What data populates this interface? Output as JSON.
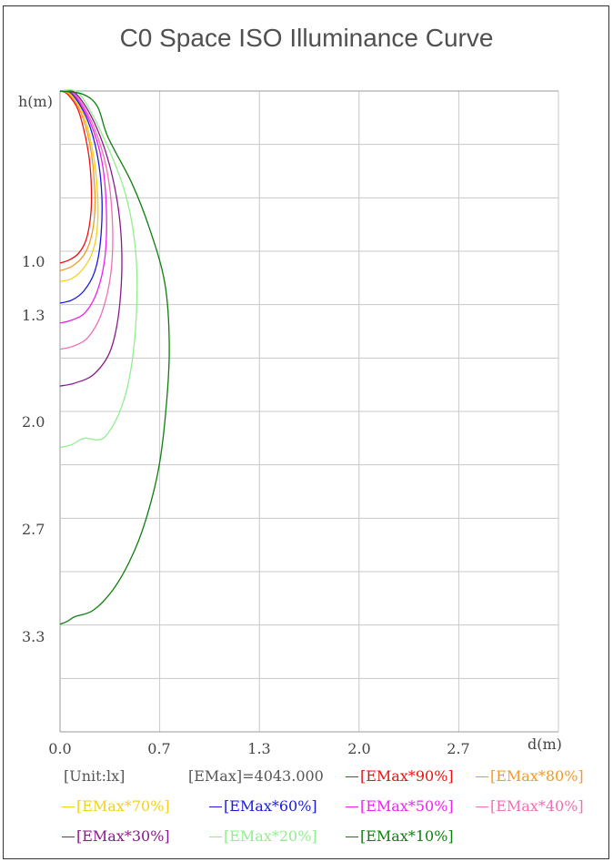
{
  "chart_data": {
    "type": "line",
    "title": "C0 Space ISO Illuminance Curve",
    "xlabel": "d(m)",
    "ylabel": "h(m)",
    "x_ticks": [
      "0.0",
      "0.7",
      "1.3",
      "2.0",
      "2.7"
    ],
    "y_ticks": [
      "1.0",
      "1.3",
      "2.0",
      "2.7",
      "3.3"
    ],
    "xlim": [
      0,
      3.33
    ],
    "ylim": [
      0,
      4.17
    ],
    "grid": true,
    "unit_text": "[Unit:lx]",
    "emax_text": "[EMax]=4043.000",
    "series": [
      {
        "name": "[EMax*90%]",
        "color": "#ee1111",
        "points": [
          [
            0,
            0
          ],
          [
            0.05,
            0.02
          ],
          [
            0.12,
            0.12
          ],
          [
            0.17,
            0.3
          ],
          [
            0.2,
            0.48
          ],
          [
            0.21,
            0.7
          ],
          [
            0.2,
            0.85
          ],
          [
            0.17,
            0.98
          ],
          [
            0.12,
            1.06
          ],
          [
            0.06,
            1.1
          ],
          [
            0,
            1.12
          ]
        ]
      },
      {
        "name": "[EMax*80%]",
        "color": "#f39a1f",
        "points": [
          [
            0,
            0
          ],
          [
            0.06,
            0.02
          ],
          [
            0.14,
            0.14
          ],
          [
            0.2,
            0.35
          ],
          [
            0.23,
            0.6
          ],
          [
            0.23,
            0.82
          ],
          [
            0.2,
            0.98
          ],
          [
            0.15,
            1.08
          ],
          [
            0.08,
            1.14
          ],
          [
            0,
            1.17
          ]
        ]
      },
      {
        "name": "[EMax*70%]",
        "color": "#f1d21a",
        "points": [
          [
            0,
            0
          ],
          [
            0.07,
            0.02
          ],
          [
            0.16,
            0.16
          ],
          [
            0.22,
            0.4
          ],
          [
            0.25,
            0.65
          ],
          [
            0.25,
            0.88
          ],
          [
            0.22,
            1.04
          ],
          [
            0.16,
            1.15
          ],
          [
            0.08,
            1.22
          ],
          [
            0,
            1.24
          ]
        ]
      },
      {
        "name": "[EMax*60%]",
        "color": "#1a1ae0",
        "points": [
          [
            0,
            0
          ],
          [
            0.08,
            0.02
          ],
          [
            0.18,
            0.18
          ],
          [
            0.25,
            0.42
          ],
          [
            0.28,
            0.7
          ],
          [
            0.27,
            0.98
          ],
          [
            0.23,
            1.18
          ],
          [
            0.16,
            1.3
          ],
          [
            0.08,
            1.36
          ],
          [
            0,
            1.38
          ]
        ]
      },
      {
        "name": "[EMax*50%]",
        "color": "#ee22ee",
        "points": [
          [
            0,
            0
          ],
          [
            0.09,
            0.02
          ],
          [
            0.2,
            0.2
          ],
          [
            0.28,
            0.46
          ],
          [
            0.31,
            0.78
          ],
          [
            0.3,
            1.08
          ],
          [
            0.25,
            1.3
          ],
          [
            0.17,
            1.44
          ],
          [
            0.08,
            1.49
          ],
          [
            0,
            1.51
          ]
        ]
      },
      {
        "name": "[EMax*40%]",
        "color": "#f26fb3",
        "points": [
          [
            0,
            0
          ],
          [
            0.1,
            0.02
          ],
          [
            0.22,
            0.22
          ],
          [
            0.31,
            0.5
          ],
          [
            0.35,
            0.85
          ],
          [
            0.34,
            1.18
          ],
          [
            0.28,
            1.44
          ],
          [
            0.19,
            1.6
          ],
          [
            0.09,
            1.66
          ],
          [
            0,
            1.68
          ]
        ]
      },
      {
        "name": "[EMax*30%]",
        "color": "#8a1a8a",
        "points": [
          [
            0,
            0
          ],
          [
            0.11,
            0.02
          ],
          [
            0.25,
            0.25
          ],
          [
            0.36,
            0.6
          ],
          [
            0.41,
            0.98
          ],
          [
            0.4,
            1.38
          ],
          [
            0.34,
            1.68
          ],
          [
            0.23,
            1.84
          ],
          [
            0.1,
            1.9
          ],
          [
            0,
            1.92
          ]
        ]
      },
      {
        "name": "[EMax*20%]",
        "color": "#8fef8f",
        "points": [
          [
            0,
            0
          ],
          [
            0.13,
            0.02
          ],
          [
            0.29,
            0.3
          ],
          [
            0.44,
            0.68
          ],
          [
            0.51,
            1.1
          ],
          [
            0.5,
            1.6
          ],
          [
            0.43,
            2.0
          ],
          [
            0.3,
            2.25
          ],
          [
            0.16,
            2.26
          ],
          [
            0.08,
            2.3
          ],
          [
            0,
            2.32
          ]
        ]
      },
      {
        "name": "[EMax*10%]",
        "color": "#0d7f0d",
        "points": [
          [
            0,
            0
          ],
          [
            0.15,
            0.02
          ],
          [
            0.25,
            0.1
          ],
          [
            0.32,
            0.3
          ],
          [
            0.48,
            0.6
          ],
          [
            0.6,
            0.9
          ],
          [
            0.7,
            1.25
          ],
          [
            0.73,
            1.65
          ],
          [
            0.71,
            2.05
          ],
          [
            0.66,
            2.45
          ],
          [
            0.57,
            2.8
          ],
          [
            0.47,
            3.05
          ],
          [
            0.35,
            3.25
          ],
          [
            0.22,
            3.38
          ],
          [
            0.1,
            3.42
          ],
          [
            0.05,
            3.45
          ],
          [
            0,
            3.47
          ]
        ]
      }
    ]
  }
}
